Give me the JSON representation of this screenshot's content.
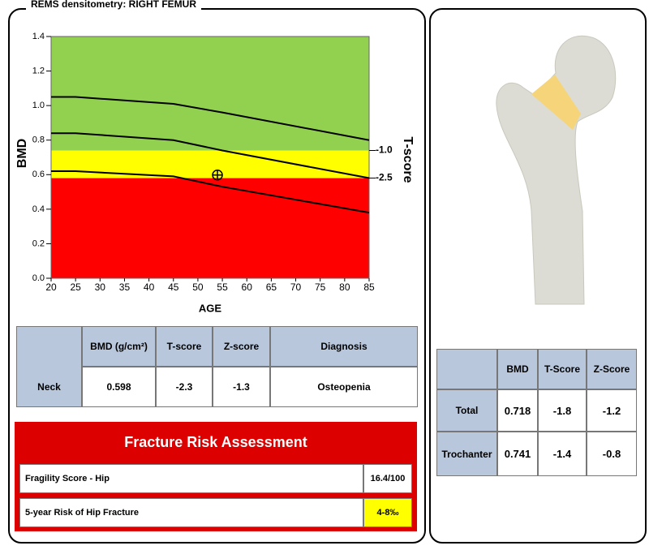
{
  "panel_title": "REMS densitometry: RIGHT FEMUR",
  "chart_data": {
    "type": "line",
    "xlabel": "AGE",
    "ylabel": "BMD",
    "y2label": "T-score",
    "x": [
      20,
      25,
      45,
      55,
      85
    ],
    "series": [
      {
        "color": "#000000",
        "values": [
          1.05,
          1.05,
          1.01,
          0.96,
          0.8
        ]
      },
      {
        "color": "#000000",
        "values": [
          0.84,
          0.84,
          0.8,
          0.74,
          0.58
        ]
      },
      {
        "color": "#000000",
        "values": [
          0.62,
          0.62,
          0.59,
          0.53,
          0.38
        ]
      }
    ],
    "point": {
      "x": 54,
      "y": 0.598
    },
    "xlim": [
      20,
      85
    ],
    "xticks": [
      20,
      25,
      30,
      35,
      40,
      45,
      50,
      55,
      60,
      65,
      70,
      75,
      80,
      85
    ],
    "ylim": [
      0,
      1.4
    ],
    "yticks": [
      {
        "value": 0,
        "label": "0.0"
      },
      0.2,
      0.4,
      0.6,
      0.8,
      {
        "value": 1,
        "label": "1.0"
      },
      1.2,
      1.4
    ],
    "y2lim": [
      -7.94,
      5.19
    ],
    "y2ticks": [
      {
        "value": -1,
        "label": "-1.0"
      },
      {
        "value": -2.5,
        "label": "-2.5"
      }
    ],
    "zone_colors": [
      "#ff0000",
      "#ffff00",
      "#92d050"
    ]
  },
  "neck_table": {
    "header": [
      "BMD (g/cm²)",
      "T-score",
      "Z-score",
      "Diagnosis"
    ],
    "rows": [
      [
        "Neck",
        "0.598",
        "-2.3",
        "-1.3",
        "Osteopenia"
      ]
    ]
  },
  "risk": {
    "title": "Fracture Risk Assessment",
    "rows": [
      [
        "Fragility Score - Hip",
        "16.4/100"
      ],
      [
        "5-year Risk of Hip Fracture",
        "4-8‰"
      ]
    ]
  },
  "hip_table": {
    "header": [
      "BMD",
      "T-Score",
      "Z-Score"
    ],
    "rows": [
      [
        "Total",
        "0.718",
        "-1.8",
        "-1.2"
      ],
      [
        "Trochanter",
        "0.741",
        "-1.4",
        "-0.8"
      ]
    ]
  }
}
